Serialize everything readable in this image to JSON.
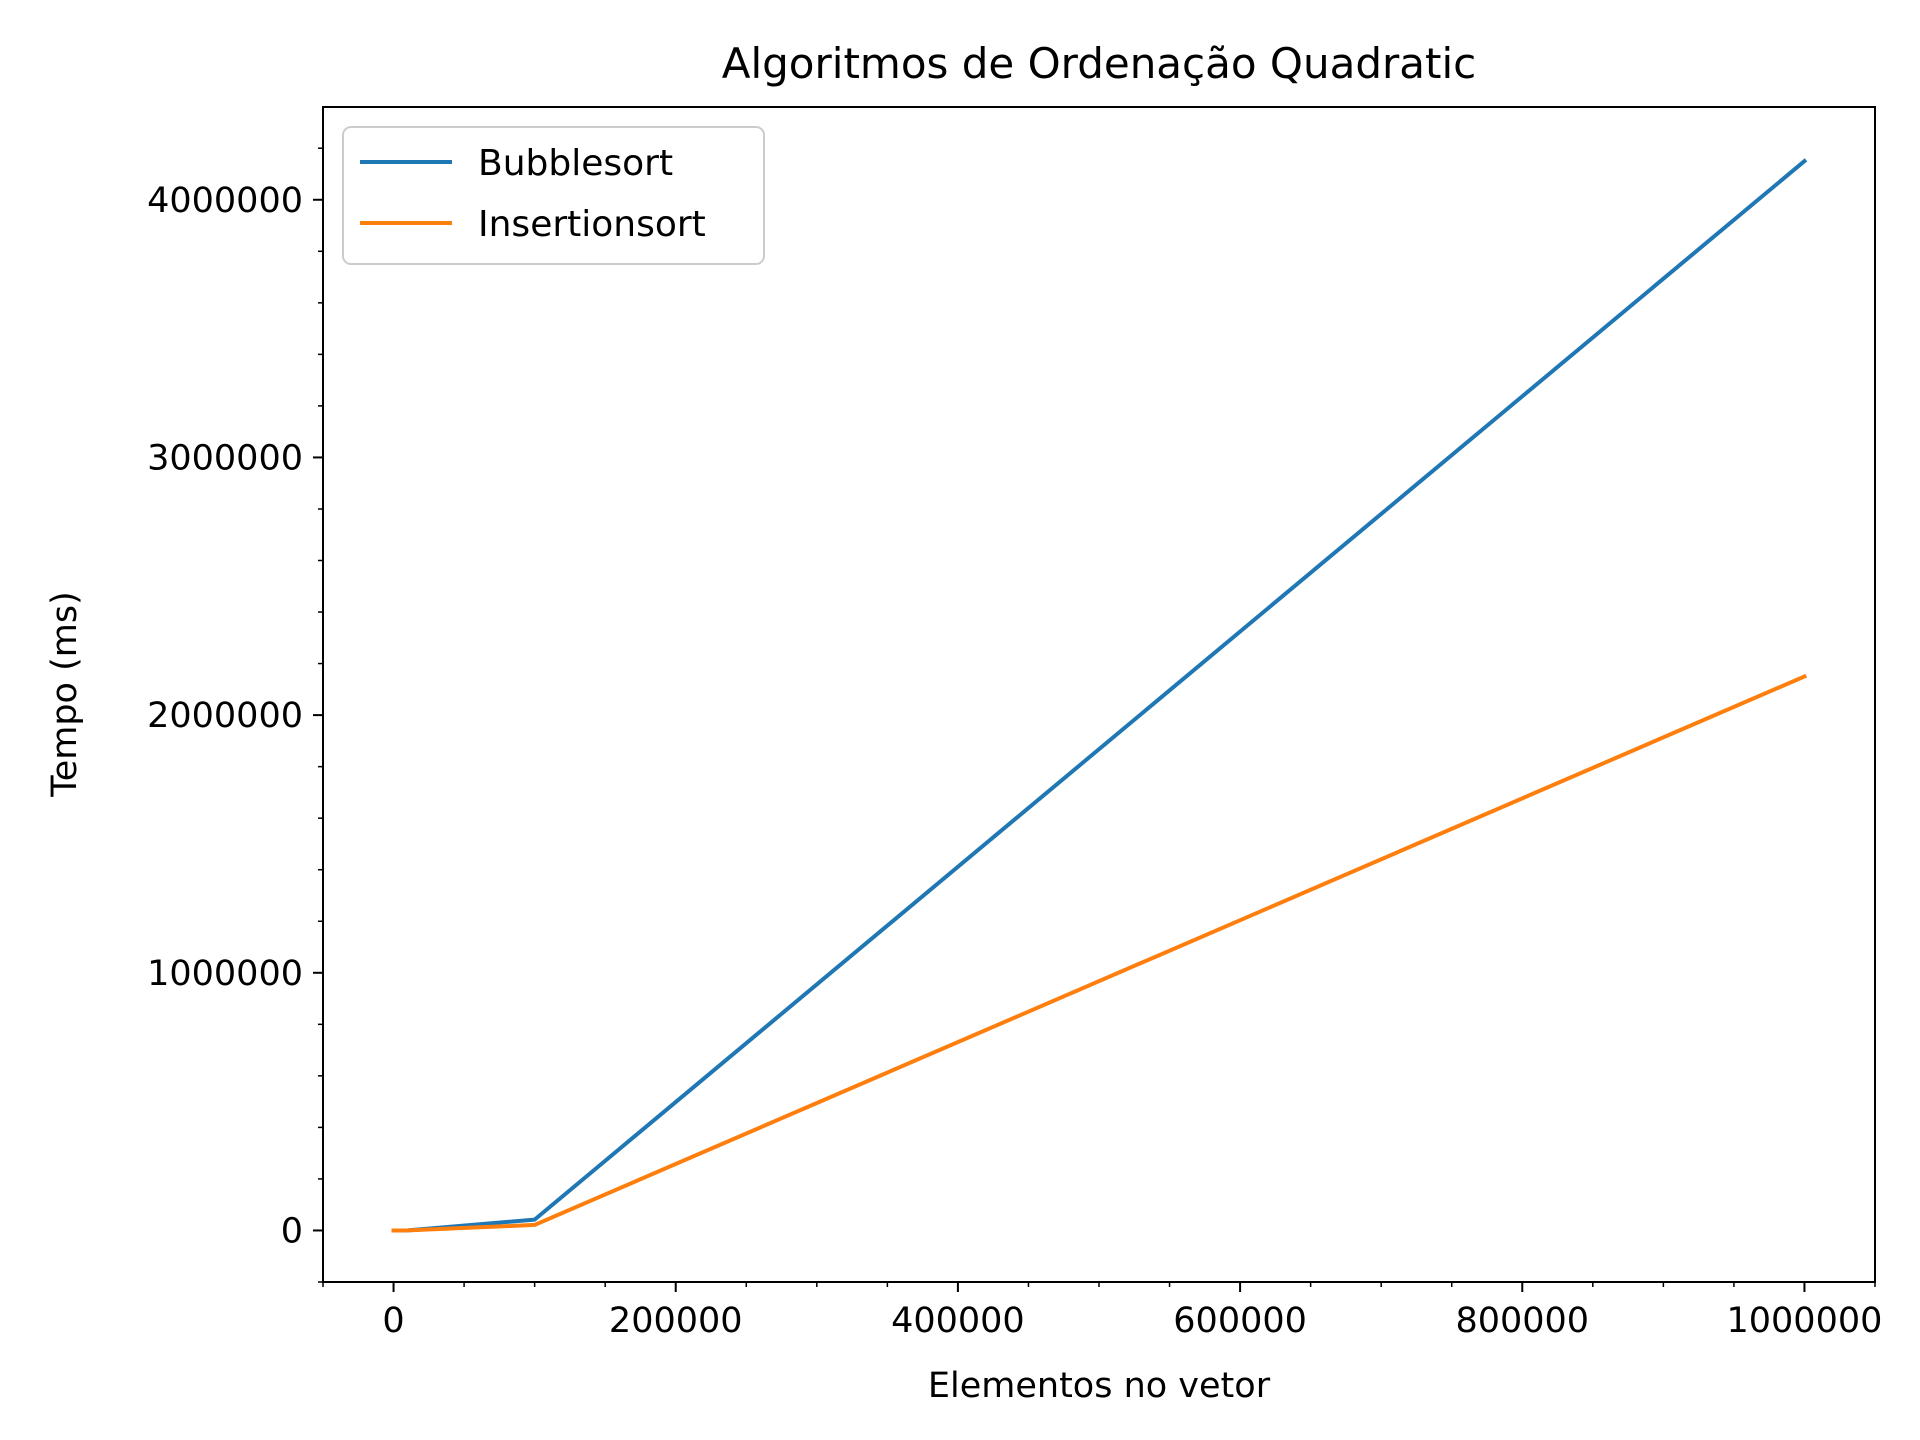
{
  "chart_data": {
    "type": "line",
    "title": "Algoritmos de Ordenação Quadratic",
    "xlabel": "Elementos no vetor",
    "ylabel": "Tempo (ms)",
    "xlim": [
      -50000,
      1050000
    ],
    "ylim": [
      -200000,
      4360000
    ],
    "xticks": [
      0,
      200000,
      400000,
      600000,
      800000,
      1000000
    ],
    "xtick_labels": [
      "0",
      "200000",
      "400000",
      "600000",
      "800000",
      "1000000"
    ],
    "yticks": [
      0,
      1000000,
      2000000,
      3000000,
      4000000
    ],
    "ytick_labels": [
      "0",
      "1000000",
      "2000000",
      "3000000",
      "4000000"
    ],
    "grid": false,
    "legend_position": "top-left",
    "series": [
      {
        "name": "Bubblesort",
        "color": "#1f77b4",
        "x": [
          10,
          100,
          1000,
          10000,
          100000,
          1000000
        ],
        "y": [
          0,
          0,
          5,
          400,
          42000,
          4150000
        ]
      },
      {
        "name": "Insertionsort",
        "color": "#ff7f0e",
        "x": [
          10,
          100,
          1000,
          10000,
          100000,
          1000000
        ],
        "y": [
          0,
          0,
          2,
          200,
          21500,
          2150000
        ]
      }
    ]
  }
}
